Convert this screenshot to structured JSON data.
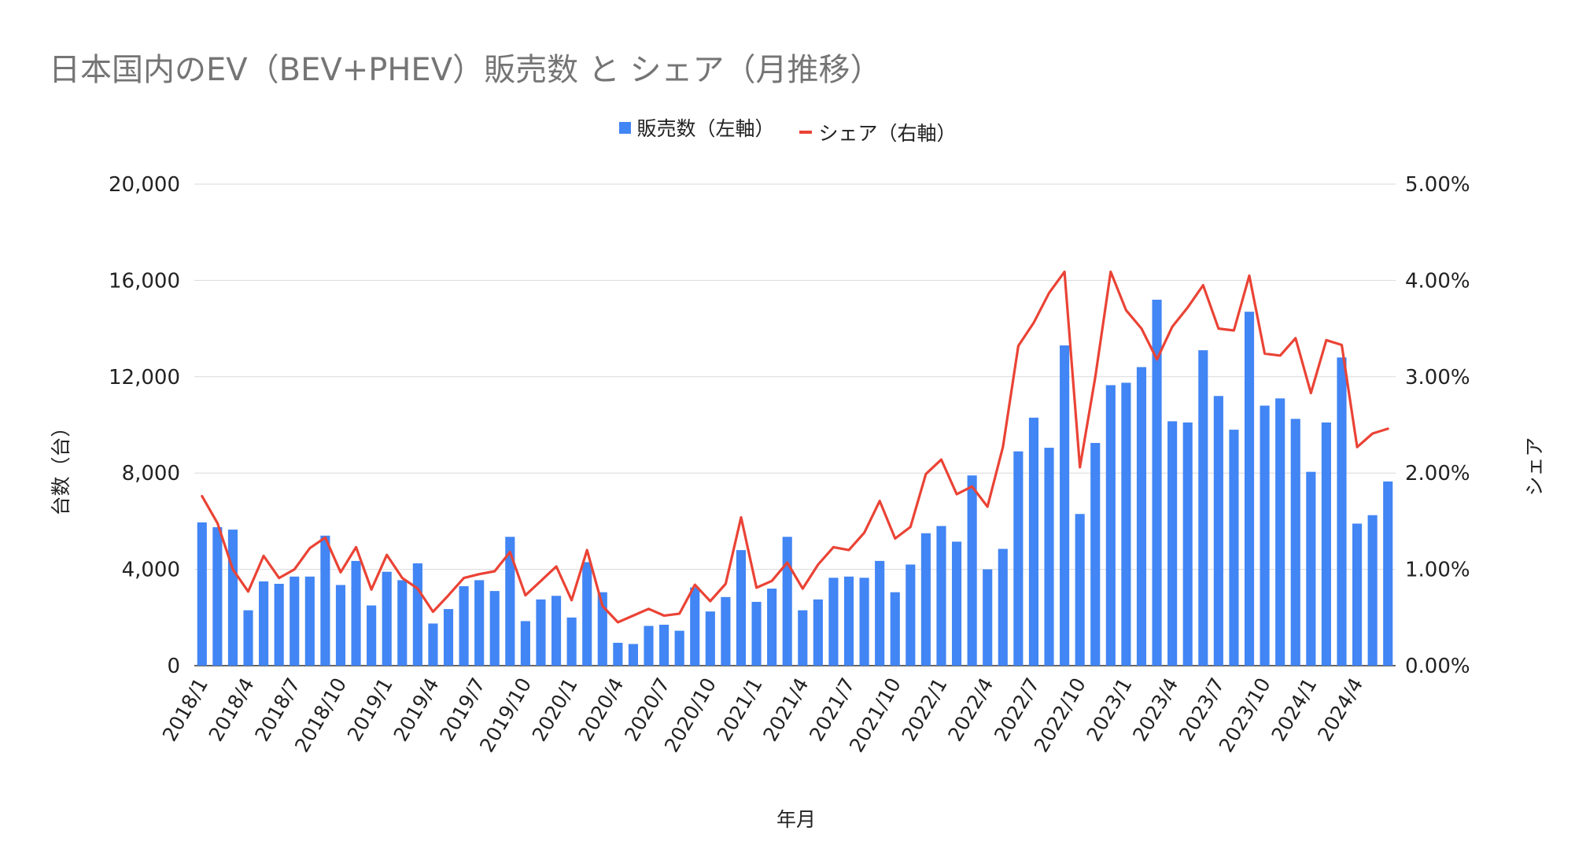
{
  "chart_data": {
    "type": "bar",
    "title": "日本国内のEV（BEV+PHEV）販売数 と シェア（月推移）",
    "legend": {
      "position": "top",
      "items": [
        "販売数（左軸）",
        "シェア（右軸）"
      ]
    },
    "xlabel": "年月",
    "ylabel_left": "台数（台）",
    "ylabel_right": "シェア",
    "ylim_left": [
      0,
      20000
    ],
    "ylim_right": [
      0,
      5.0
    ],
    "yticks_left": [
      "0",
      "4,000",
      "8,000",
      "12,000",
      "16,000",
      "20,000"
    ],
    "yticks_right": [
      "0.00%",
      "1.00%",
      "2.00%",
      "3.00%",
      "4.00%",
      "5.00%"
    ],
    "xtick_labels": [
      "2018/1",
      "2018/4",
      "2018/7",
      "2018/10",
      "2019/1",
      "2019/4",
      "2019/7",
      "2019/10",
      "2020/1",
      "2020/4",
      "2020/7",
      "2020/10",
      "2021/1",
      "2021/4",
      "2021/7",
      "2021/10",
      "2022/1",
      "2022/4",
      "2022/7",
      "2022/10",
      "2023/1",
      "2023/4",
      "2023/7",
      "2023/10",
      "2024/1",
      "2024/4"
    ],
    "grid": true,
    "colors": {
      "bars": "#4285f4",
      "line": "#ea4335",
      "grid": "#d9d9d9",
      "axis": "#333333"
    },
    "categories": [
      "2018/1",
      "2018/2",
      "2018/3",
      "2018/4",
      "2018/5",
      "2018/6",
      "2018/7",
      "2018/8",
      "2018/9",
      "2018/10",
      "2018/11",
      "2018/12",
      "2019/1",
      "2019/2",
      "2019/3",
      "2019/4",
      "2019/5",
      "2019/6",
      "2019/7",
      "2019/8",
      "2019/9",
      "2019/10",
      "2019/11",
      "2019/12",
      "2020/1",
      "2020/2",
      "2020/3",
      "2020/4",
      "2020/5",
      "2020/6",
      "2020/7",
      "2020/8",
      "2020/9",
      "2020/10",
      "2020/11",
      "2020/12",
      "2021/1",
      "2021/2",
      "2021/3",
      "2021/4",
      "2021/5",
      "2021/6",
      "2021/7",
      "2021/8",
      "2021/9",
      "2021/10",
      "2021/11",
      "2021/12",
      "2022/1",
      "2022/2",
      "2022/3",
      "2022/4",
      "2022/5",
      "2022/6",
      "2022/7",
      "2022/8",
      "2022/9",
      "2022/10",
      "2022/11",
      "2022/12",
      "2023/1",
      "2023/2",
      "2023/3",
      "2023/4",
      "2023/5",
      "2023/6",
      "2023/7",
      "2023/8",
      "2023/9",
      "2023/10",
      "2023/11",
      "2023/12",
      "2024/1",
      "2024/2",
      "2024/3",
      "2024/4",
      "2024/5",
      "2024/6"
    ],
    "series": [
      {
        "name": "販売数（左軸）",
        "axis": "left",
        "type": "bar",
        "values": [
          5950,
          5750,
          5650,
          2300,
          3500,
          3400,
          3700,
          3700,
          5400,
          3350,
          4350,
          2500,
          3900,
          3550,
          4250,
          1750,
          2350,
          3300,
          3550,
          3100,
          5350,
          1850,
          2750,
          2900,
          2000,
          4300,
          3050,
          950,
          900,
          1650,
          1700,
          1450,
          3250,
          2250,
          2850,
          4800,
          2650,
          3200,
          5350,
          2300,
          2750,
          3650,
          3700,
          3650,
          4350,
          3050,
          4200,
          5500,
          5800,
          5150,
          7900,
          4000,
          4850,
          8900,
          10300,
          9050,
          13300,
          6300,
          9250,
          11650,
          11750,
          12400,
          15200,
          10150,
          10100,
          13100,
          11200,
          9800,
          14700,
          10800,
          11100,
          10250,
          8050,
          10100,
          12800,
          5900,
          6250,
          7650
        ]
      },
      {
        "name": "シェア（右軸）",
        "axis": "right",
        "type": "line",
        "values": [
          1.76,
          1.48,
          1.0,
          0.77,
          1.14,
          0.91,
          1.0,
          1.22,
          1.33,
          0.97,
          1.23,
          0.79,
          1.15,
          0.91,
          0.8,
          0.56,
          0.73,
          0.91,
          0.95,
          0.98,
          1.18,
          0.73,
          0.88,
          1.03,
          0.68,
          1.2,
          0.62,
          0.45,
          0.52,
          0.59,
          0.52,
          0.54,
          0.84,
          0.67,
          0.85,
          1.54,
          0.81,
          0.88,
          1.07,
          0.8,
          1.05,
          1.23,
          1.2,
          1.38,
          1.71,
          1.32,
          1.44,
          1.99,
          2.14,
          1.78,
          1.86,
          1.65,
          2.27,
          3.32,
          3.56,
          3.87,
          4.09,
          2.06,
          3.0,
          4.09,
          3.69,
          3.5,
          3.18,
          3.52,
          3.72,
          3.95,
          3.5,
          3.48,
          4.05,
          3.24,
          3.22,
          3.4,
          2.83,
          3.38,
          3.33,
          2.27,
          2.41,
          2.46
        ]
      }
    ]
  }
}
